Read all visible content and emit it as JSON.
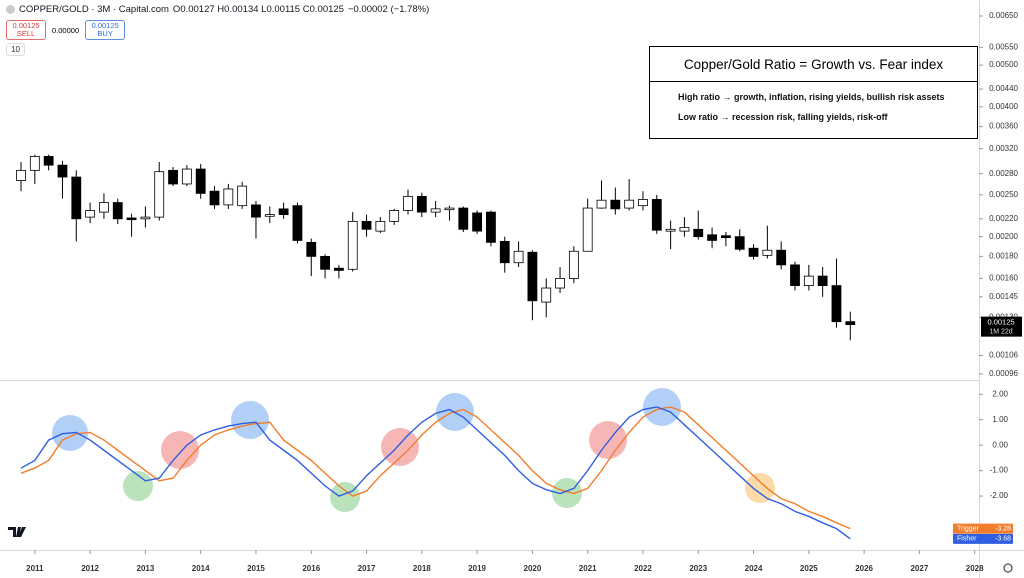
{
  "header": {
    "symbol": "COPPER/GOLD · 3M · Capital.com",
    "ohlc": [
      {
        "key": "O",
        "value": "0.00127"
      },
      {
        "key": "H",
        "value": "0.00134"
      },
      {
        "key": "L",
        "value": "0.00115"
      },
      {
        "key": "C",
        "value": "0.00125"
      }
    ],
    "change": "−0.00002 (−1.78%)",
    "sell_price": "0.00125",
    "sell_label": "SELL",
    "spread": "0.00000",
    "buy_price": "0.00125",
    "buy_label": "BUY",
    "interval": "10"
  },
  "annotation": {
    "title": "Copper/Gold Ratio = Growth vs. Fear index",
    "lines": [
      "High ratio → growth, inflation, rising yields, bullish risk assets",
      "Low ratio → recession risk, falling yields, risk-off"
    ]
  },
  "chart_data": [
    {
      "type": "candlestick",
      "log": true,
      "grid": false,
      "up_color": "#ffffff",
      "down_color": "#000000",
      "xlim": [
        2010.37,
        2028.06
      ],
      "ylim": [
        0.00093,
        0.00708
      ],
      "yticks": [
        {
          "value": 0.0065,
          "label": "0.00650"
        },
        {
          "value": 0.0055,
          "label": "0.00550"
        },
        {
          "value": 0.005,
          "label": "0.00500"
        },
        {
          "value": 0.0044,
          "label": "0.00440"
        },
        {
          "value": 0.004,
          "label": "0.00400"
        },
        {
          "value": 0.0036,
          "label": "0.00360"
        },
        {
          "value": 0.0032,
          "label": "0.00320"
        },
        {
          "value": 0.0028,
          "label": "0.00280"
        },
        {
          "value": 0.0025,
          "label": "0.00250"
        },
        {
          "value": 0.0022,
          "label": "0.00220"
        },
        {
          "value": 0.002,
          "label": "0.00200"
        },
        {
          "value": 0.0018,
          "label": "0.00180"
        },
        {
          "value": 0.0016,
          "label": "0.00160"
        },
        {
          "value": 0.00145,
          "label": "0.00145"
        },
        {
          "value": 0.0013,
          "label": "0.00130"
        },
        {
          "value": 0.00106,
          "label": "0.00106"
        },
        {
          "value": 0.00096,
          "label": "0.00096"
        }
      ],
      "last_price_label": "0.00125",
      "countdown": "1M 22d",
      "x": [
        2010.75,
        2011,
        2011.25,
        2011.5,
        2011.75,
        2012,
        2012.25,
        2012.5,
        2012.75,
        2013,
        2013.25,
        2013.5,
        2013.75,
        2014,
        2014.25,
        2014.5,
        2014.75,
        2015,
        2015.25,
        2015.5,
        2015.75,
        2016,
        2016.25,
        2016.5,
        2016.75,
        2017,
        2017.25,
        2017.5,
        2017.75,
        2018,
        2018.25,
        2018.5,
        2018.75,
        2019,
        2019.25,
        2019.5,
        2019.75,
        2020,
        2020.25,
        2020.5,
        2020.75,
        2021,
        2021.25,
        2021.5,
        2021.75,
        2022,
        2022.25,
        2022.5,
        2022.75,
        2023,
        2023.25,
        2023.5,
        2023.75,
        2024,
        2024.25,
        2024.5,
        2024.75,
        2025,
        2025.25,
        2025.5,
        2025.75
      ],
      "open": [
        0.0027,
        0.00285,
        0.00307,
        0.00293,
        0.00275,
        0.00222,
        0.00228,
        0.0024,
        0.00221,
        0.0022,
        0.00222,
        0.00285,
        0.00265,
        0.00287,
        0.00255,
        0.00237,
        0.00236,
        0.00237,
        0.00223,
        0.00232,
        0.00236,
        0.00194,
        0.0018,
        0.00169,
        0.00168,
        0.00217,
        0.00206,
        0.00217,
        0.0023,
        0.00248,
        0.00228,
        0.00231,
        0.00233,
        0.00227,
        0.00228,
        0.00195,
        0.00174,
        0.00184,
        0.00141,
        0.00152,
        0.0016,
        0.00185,
        0.00233,
        0.00243,
        0.00233,
        0.00236,
        0.00244,
        0.00206,
        0.00206,
        0.00208,
        0.00202,
        0.00201,
        0.002,
        0.00188,
        0.00181,
        0.00186,
        0.00172,
        0.00154,
        0.00162,
        0.00154,
        0.00127
      ],
      "high": [
        0.00298,
        0.0031,
        0.0031,
        0.003,
        0.00285,
        0.0024,
        0.00252,
        0.00245,
        0.00226,
        0.00235,
        0.00298,
        0.0029,
        0.00293,
        0.00295,
        0.00262,
        0.00265,
        0.00268,
        0.00242,
        0.00235,
        0.0024,
        0.0024,
        0.00198,
        0.00182,
        0.00172,
        0.00228,
        0.00225,
        0.00222,
        0.00232,
        0.00257,
        0.00253,
        0.00242,
        0.00236,
        0.00235,
        0.0023,
        0.0023,
        0.002,
        0.00195,
        0.00186,
        0.0016,
        0.0017,
        0.0019,
        0.00245,
        0.0027,
        0.0026,
        0.00272,
        0.00255,
        0.0025,
        0.00218,
        0.00222,
        0.0023,
        0.0021,
        0.00205,
        0.00208,
        0.00192,
        0.00212,
        0.00195,
        0.00175,
        0.00172,
        0.0017,
        0.00178,
        0.00134
      ],
      "low": [
        0.00255,
        0.00265,
        0.00285,
        0.00245,
        0.00195,
        0.00215,
        0.0022,
        0.00214,
        0.002,
        0.0021,
        0.00218,
        0.00262,
        0.00262,
        0.00245,
        0.00232,
        0.00232,
        0.00232,
        0.00198,
        0.00215,
        0.0022,
        0.00193,
        0.00162,
        0.0016,
        0.0016,
        0.00166,
        0.002,
        0.00204,
        0.00213,
        0.00225,
        0.00222,
        0.00222,
        0.00218,
        0.00205,
        0.00203,
        0.0019,
        0.00165,
        0.0017,
        0.00128,
        0.0013,
        0.00148,
        0.00156,
        0.00185,
        0.00232,
        0.00225,
        0.0023,
        0.0023,
        0.00203,
        0.00187,
        0.002,
        0.00197,
        0.00188,
        0.0019,
        0.00185,
        0.00177,
        0.00178,
        0.00168,
        0.0015,
        0.0015,
        0.00145,
        0.00123,
        0.00115
      ],
      "close": [
        0.00285,
        0.00307,
        0.00293,
        0.00275,
        0.0022,
        0.0023,
        0.0024,
        0.0022,
        0.00219,
        0.00222,
        0.00283,
        0.00265,
        0.00287,
        0.00252,
        0.00237,
        0.00258,
        0.00262,
        0.00222,
        0.00225,
        0.00225,
        0.00196,
        0.0018,
        0.00168,
        0.00167,
        0.00217,
        0.00208,
        0.00217,
        0.0023,
        0.00248,
        0.00228,
        0.00232,
        0.00233,
        0.00208,
        0.00206,
        0.00194,
        0.00174,
        0.00185,
        0.00142,
        0.00152,
        0.0016,
        0.00185,
        0.00233,
        0.00243,
        0.00232,
        0.00243,
        0.00244,
        0.00207,
        0.00208,
        0.0021,
        0.002,
        0.00196,
        0.00199,
        0.00187,
        0.0018,
        0.00186,
        0.00172,
        0.00154,
        0.00162,
        0.00154,
        0.00127,
        0.00125
      ]
    },
    {
      "type": "line",
      "xlim": [
        2010.37,
        2028.06
      ],
      "xticks": [
        2011,
        2012,
        2013,
        2014,
        2015,
        2016,
        2017,
        2018,
        2019,
        2020,
        2021,
        2022,
        2023,
        2024,
        2025,
        2026,
        2027,
        2028
      ],
      "ylim": [
        -4.04,
        2.56
      ],
      "yticks": [
        {
          "value": 2,
          "label": "2.00"
        },
        {
          "value": 1,
          "label": "1.00"
        },
        {
          "value": 0,
          "label": "0.00"
        },
        {
          "value": -1,
          "label": "-1.00"
        },
        {
          "value": -2,
          "label": "-2.00"
        }
      ],
      "x": [
        2010.75,
        2011,
        2011.25,
        2011.5,
        2011.75,
        2012,
        2012.25,
        2012.5,
        2012.75,
        2013,
        2013.25,
        2013.5,
        2013.75,
        2014,
        2014.25,
        2014.5,
        2014.75,
        2015,
        2015.25,
        2015.5,
        2015.75,
        2016,
        2016.25,
        2016.5,
        2016.75,
        2017,
        2017.25,
        2017.5,
        2017.75,
        2018,
        2018.25,
        2018.5,
        2018.75,
        2019,
        2019.25,
        2019.5,
        2019.75,
        2020,
        2020.25,
        2020.5,
        2020.75,
        2021,
        2021.25,
        2021.5,
        2021.75,
        2022,
        2022.25,
        2022.5,
        2022.75,
        2023,
        2023.25,
        2023.5,
        2023.75,
        2024,
        2024.25,
        2024.5,
        2024.75,
        2025,
        2025.25,
        2025.5,
        2025.75
      ],
      "series": [
        {
          "name": "Trigger",
          "color": "#f57c2a",
          "last_label": "-3.28",
          "values": [
            -1.1,
            -0.9,
            -0.6,
            0.2,
            0.45,
            0.5,
            0.2,
            -0.2,
            -0.6,
            -1.0,
            -1.4,
            -1.3,
            -0.6,
            0.0,
            0.4,
            0.6,
            0.75,
            0.85,
            0.9,
            0.2,
            -0.2,
            -0.6,
            -1.1,
            -1.6,
            -2.0,
            -1.8,
            -1.2,
            -0.7,
            -0.2,
            0.4,
            0.9,
            1.25,
            1.4,
            1.1,
            0.6,
            0.1,
            -0.4,
            -1.0,
            -1.5,
            -1.75,
            -1.9,
            -1.7,
            -1.0,
            -0.2,
            0.5,
            1.1,
            1.4,
            1.5,
            1.3,
            0.8,
            0.3,
            -0.2,
            -0.7,
            -1.2,
            -1.7,
            -2.1,
            -2.3,
            -2.6,
            -2.8,
            -3.05,
            -3.28
          ]
        },
        {
          "name": "Fisher",
          "color": "#2f5fe0",
          "last_label": "-3.68",
          "values": [
            -0.9,
            -0.6,
            0.2,
            0.45,
            0.5,
            0.2,
            -0.2,
            -0.6,
            -1.0,
            -1.4,
            -1.3,
            -0.6,
            0.0,
            0.4,
            0.6,
            0.75,
            0.85,
            0.9,
            0.2,
            -0.2,
            -0.6,
            -1.1,
            -1.6,
            -2.0,
            -1.8,
            -1.2,
            -0.7,
            -0.2,
            0.4,
            0.9,
            1.25,
            1.4,
            1.1,
            0.6,
            0.1,
            -0.4,
            -1.0,
            -1.5,
            -1.75,
            -1.9,
            -1.7,
            -1.0,
            -0.2,
            0.5,
            1.1,
            1.4,
            1.5,
            1.3,
            0.8,
            0.3,
            -0.2,
            -0.7,
            -1.2,
            -1.7,
            -2.1,
            -2.3,
            -2.6,
            -2.8,
            -3.05,
            -3.28,
            -3.68
          ]
        }
      ]
    }
  ]
}
